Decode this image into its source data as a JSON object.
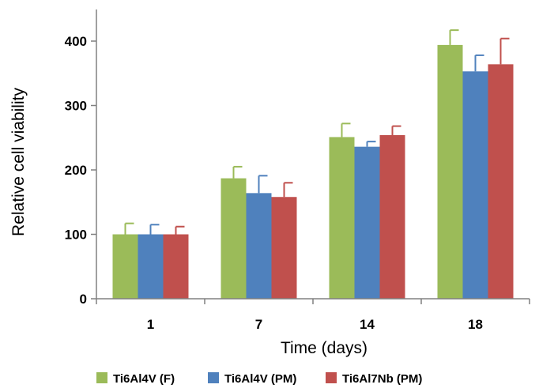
{
  "chart_data": {
    "type": "bar",
    "title": "",
    "xlabel": "Time (days)",
    "ylabel": "Relative cell viability",
    "categories": [
      "1",
      "7",
      "14",
      "18"
    ],
    "ylim": [
      0,
      400
    ],
    "yticks": [
      0,
      100,
      200,
      300,
      400
    ],
    "grid": false,
    "legend_position": "bottom",
    "series": [
      {
        "name": "Ti6Al4V (F)",
        "color": "#9bbb59",
        "values": [
          100,
          187,
          251,
          394
        ],
        "errors": [
          17,
          18,
          21,
          23
        ]
      },
      {
        "name": "Ti6Al4V (PM)",
        "color": "#4f81bd",
        "values": [
          100,
          164,
          236,
          353
        ],
        "errors": [
          15,
          27,
          8,
          25
        ]
      },
      {
        "name": "Ti6Al7Nb (PM)",
        "color": "#c0504d",
        "values": [
          100,
          158,
          254,
          364
        ],
        "errors": [
          12,
          22,
          14,
          40
        ]
      }
    ]
  }
}
